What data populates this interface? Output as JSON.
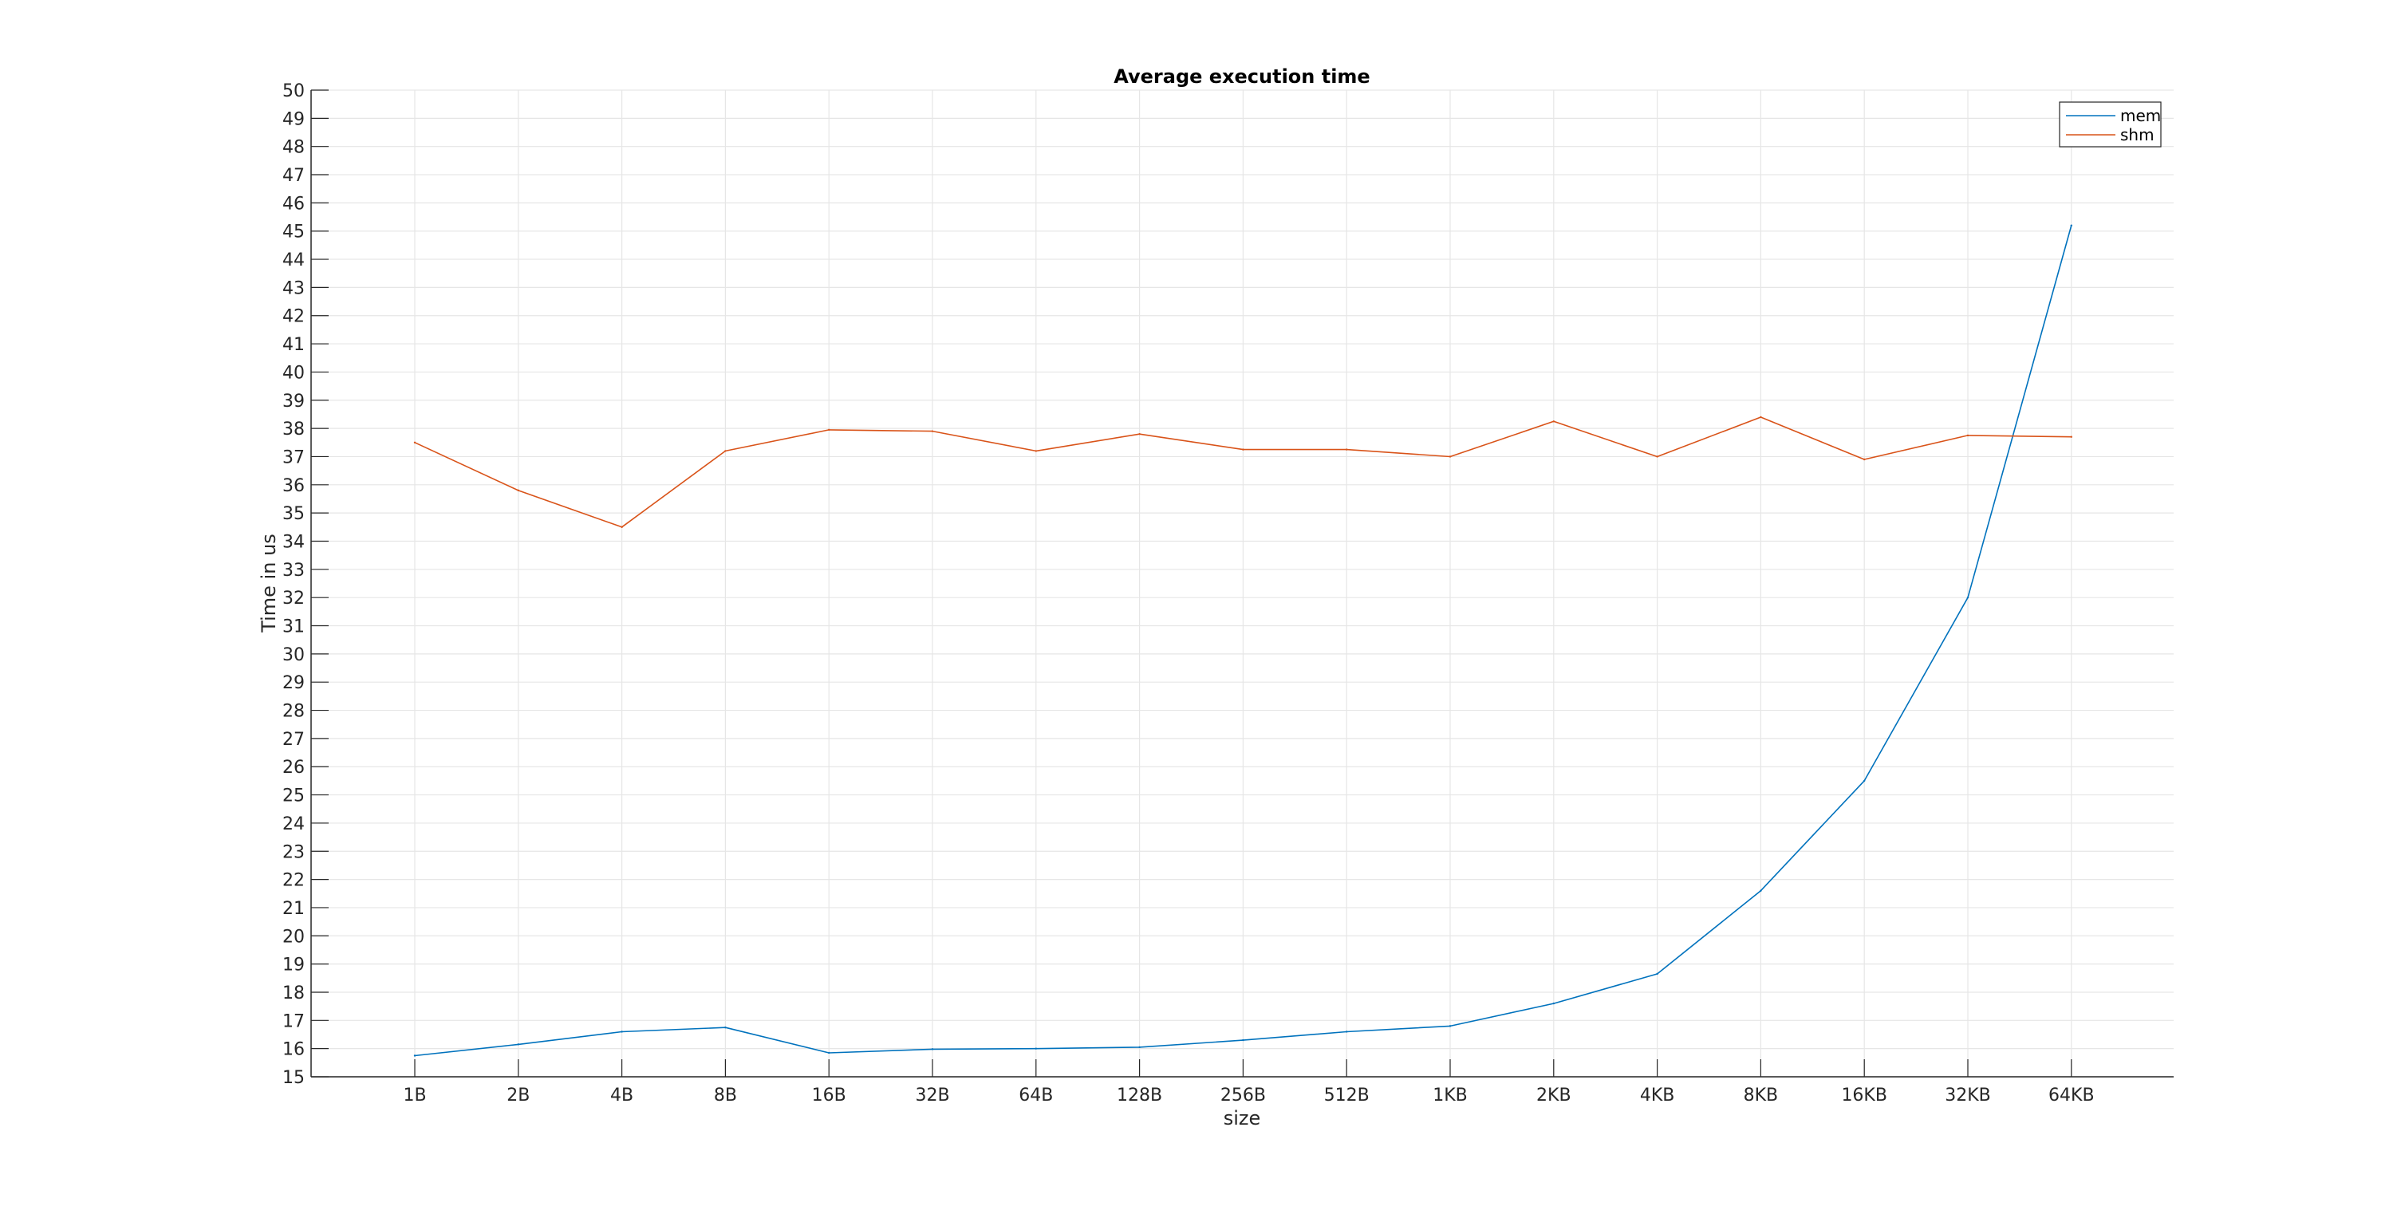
{
  "chart_data": {
    "type": "line",
    "title": "Average execution time",
    "xlabel": "size",
    "ylabel": "Time in us",
    "categories": [
      "1B",
      "2B",
      "4B",
      "8B",
      "16B",
      "32B",
      "64B",
      "128B",
      "256B",
      "512B",
      "1KB",
      "2KB",
      "4KB",
      "8KB",
      "16KB",
      "32KB",
      "64KB"
    ],
    "ylim": [
      15,
      50
    ],
    "yticks": [
      15,
      16,
      17,
      18,
      19,
      20,
      21,
      22,
      23,
      24,
      25,
      26,
      27,
      28,
      29,
      30,
      31,
      32,
      33,
      34,
      35,
      36,
      37,
      38,
      39,
      40,
      41,
      42,
      43,
      44,
      45,
      46,
      47,
      48,
      49,
      50
    ],
    "grid": true,
    "legend_position": "top-right",
    "series": [
      {
        "name": "mem",
        "color": "#0072BD",
        "values": [
          15.75,
          16.15,
          16.6,
          16.75,
          15.85,
          15.98,
          16.0,
          16.05,
          16.3,
          16.6,
          16.8,
          17.6,
          18.65,
          21.6,
          25.5,
          32.0,
          45.2
        ]
      },
      {
        "name": "shm",
        "color": "#D95319",
        "values": [
          37.5,
          35.8,
          34.5,
          37.2,
          37.95,
          37.9,
          37.2,
          37.8,
          37.25,
          37.25,
          37.0,
          38.25,
          37.0,
          38.4,
          36.9,
          37.75,
          37.7
        ]
      }
    ]
  }
}
